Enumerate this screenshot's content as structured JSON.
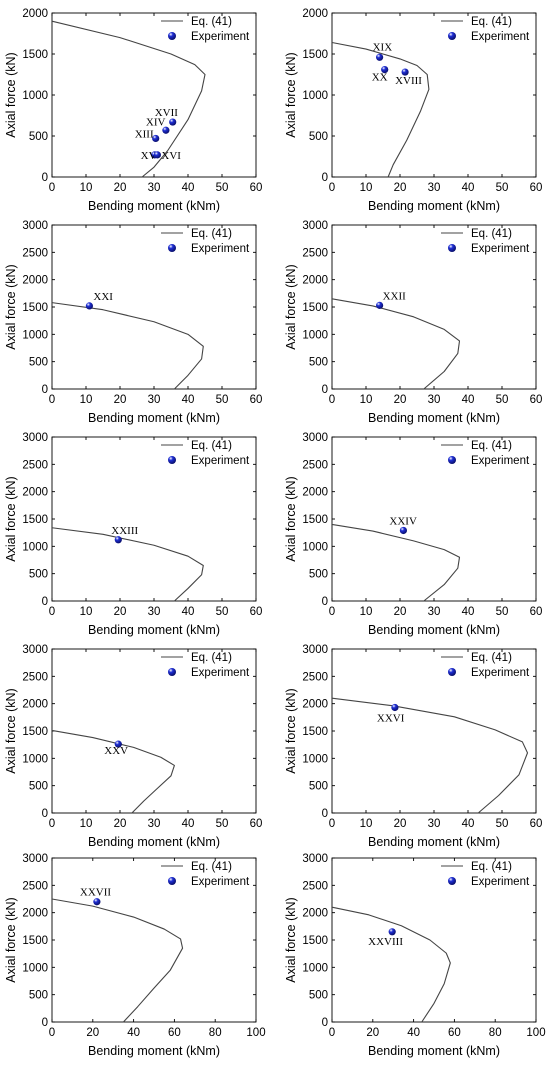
{
  "figure": {
    "curve_color": "#444444",
    "marker_color": "#1f2fd6"
  },
  "chart_data": [
    {
      "type": "line",
      "xlabel": "Bending moment (kNm)",
      "ylabel": "Axial force (kN)",
      "xlim": [
        0,
        60
      ],
      "ylim": [
        0,
        2000
      ],
      "xticks": [
        0,
        10,
        20,
        30,
        40,
        50,
        60
      ],
      "yticks": [
        0,
        500,
        1000,
        1500,
        2000
      ],
      "grid": false,
      "legend_position": "top-right",
      "series": [
        {
          "name": "Eq. (41)",
          "type": "line",
          "x": [
            0,
            20,
            35,
            42,
            45,
            44,
            40,
            34,
            30,
            26.5
          ],
          "y": [
            1900,
            1700,
            1500,
            1370,
            1250,
            1050,
            700,
            320,
            120,
            0
          ]
        },
        {
          "name": "Experiment",
          "type": "scatter",
          "x": [
            35.5,
            33.5,
            30.5,
            30.2,
            31
          ],
          "y": [
            670,
            570,
            470,
            270,
            270
          ],
          "labels": [
            "XVII",
            "XIV",
            "XIII",
            "XV",
            "XVI"
          ]
        }
      ]
    },
    {
      "type": "line",
      "xlabel": "Bending moment (kNm)",
      "ylabel": "Axial force (kN)",
      "xlim": [
        0,
        60
      ],
      "ylim": [
        0,
        2000
      ],
      "xticks": [
        0,
        10,
        20,
        30,
        40,
        50,
        60
      ],
      "yticks": [
        0,
        500,
        1000,
        1500,
        2000
      ],
      "grid": false,
      "legend_position": "top-right",
      "series": [
        {
          "name": "Eq. (41)",
          "type": "line",
          "x": [
            0,
            10,
            20,
            25,
            28,
            28.5,
            26,
            22,
            18,
            16.5
          ],
          "y": [
            1640,
            1560,
            1440,
            1360,
            1250,
            1070,
            800,
            450,
            150,
            0
          ]
        },
        {
          "name": "Experiment",
          "type": "scatter",
          "x": [
            14,
            15.5,
            21.5
          ],
          "y": [
            1460,
            1310,
            1280
          ],
          "labels": [
            "XIX",
            "XX",
            "XVIII"
          ]
        }
      ]
    },
    {
      "type": "line",
      "xlabel": "Bending moment (kNm)",
      "ylabel": "Axial force (kN)",
      "xlim": [
        0,
        60
      ],
      "ylim": [
        0,
        3000
      ],
      "xticks": [
        0,
        10,
        20,
        30,
        40,
        50,
        60
      ],
      "yticks": [
        0,
        500,
        1000,
        1500,
        2000,
        2500,
        3000
      ],
      "grid": false,
      "legend_position": "top-right",
      "series": [
        {
          "name": "Eq. (41)",
          "type": "line",
          "x": [
            0,
            15,
            30,
            40,
            44.5,
            44,
            40,
            36
          ],
          "y": [
            1580,
            1450,
            1230,
            1000,
            780,
            550,
            250,
            0
          ]
        },
        {
          "name": "Experiment",
          "type": "scatter",
          "x": [
            11
          ],
          "y": [
            1520
          ],
          "labels": [
            "XXI"
          ]
        }
      ]
    },
    {
      "type": "line",
      "xlabel": "Bending moment (kNm)",
      "ylabel": "Axial force (kN)",
      "xlim": [
        0,
        60
      ],
      "ylim": [
        0,
        3000
      ],
      "xticks": [
        0,
        10,
        20,
        30,
        40,
        50,
        60
      ],
      "yticks": [
        0,
        500,
        1000,
        1500,
        2000,
        2500,
        3000
      ],
      "grid": false,
      "legend_position": "top-right",
      "series": [
        {
          "name": "Eq. (41)",
          "type": "line",
          "x": [
            0,
            12,
            24,
            33,
            37.5,
            37,
            33,
            27
          ],
          "y": [
            1650,
            1520,
            1320,
            1090,
            880,
            650,
            320,
            0
          ]
        },
        {
          "name": "Experiment",
          "type": "scatter",
          "x": [
            14
          ],
          "y": [
            1530
          ],
          "labels": [
            "XXII"
          ]
        }
      ]
    },
    {
      "type": "line",
      "xlabel": "Bending moment (kNm)",
      "ylabel": "Axial force (kN)",
      "xlim": [
        0,
        60
      ],
      "ylim": [
        0,
        3000
      ],
      "xticks": [
        0,
        10,
        20,
        30,
        40,
        50,
        60
      ],
      "yticks": [
        0,
        500,
        1000,
        1500,
        2000,
        2500,
        3000
      ],
      "grid": false,
      "legend_position": "top-right",
      "series": [
        {
          "name": "Eq. (41)",
          "type": "line",
          "x": [
            0,
            15,
            30,
            40,
            44.5,
            44,
            40,
            36
          ],
          "y": [
            1340,
            1220,
            1020,
            820,
            650,
            480,
            230,
            0
          ]
        },
        {
          "name": "Experiment",
          "type": "scatter",
          "x": [
            19.5
          ],
          "y": [
            1120
          ],
          "labels": [
            "XXIII"
          ]
        }
      ]
    },
    {
      "type": "line",
      "xlabel": "Bending moment (kNm)",
      "ylabel": "Axial force (kN)",
      "xlim": [
        0,
        60
      ],
      "ylim": [
        0,
        3000
      ],
      "xticks": [
        0,
        10,
        20,
        30,
        40,
        50,
        60
      ],
      "yticks": [
        0,
        500,
        1000,
        1500,
        2000,
        2500,
        3000
      ],
      "grid": false,
      "legend_position": "top-right",
      "series": [
        {
          "name": "Eq. (41)",
          "type": "line",
          "x": [
            0,
            12,
            24,
            33,
            37.5,
            37,
            33,
            27
          ],
          "y": [
            1400,
            1280,
            1100,
            940,
            800,
            600,
            300,
            0
          ]
        },
        {
          "name": "Experiment",
          "type": "scatter",
          "x": [
            21
          ],
          "y": [
            1290
          ],
          "labels": [
            "XXIV"
          ]
        }
      ]
    },
    {
      "type": "line",
      "xlabel": "Bending moment (kNm)",
      "ylabel": "Axial force (kN)",
      "xlim": [
        0,
        60
      ],
      "ylim": [
        0,
        3000
      ],
      "xticks": [
        0,
        10,
        20,
        30,
        40,
        50,
        60
      ],
      "yticks": [
        0,
        500,
        1000,
        1500,
        2000,
        2500,
        3000
      ],
      "grid": false,
      "legend_position": "top-right",
      "series": [
        {
          "name": "Eq. (41)",
          "type": "line",
          "x": [
            0,
            12,
            24,
            32,
            36,
            35,
            31,
            27,
            23.5
          ],
          "y": [
            1510,
            1380,
            1200,
            1020,
            870,
            680,
            450,
            220,
            0
          ]
        },
        {
          "name": "Experiment",
          "type": "scatter",
          "x": [
            19.5
          ],
          "y": [
            1260
          ],
          "labels": [
            "XXV"
          ]
        }
      ]
    },
    {
      "type": "line",
      "xlabel": "Bending moment (kNm)",
      "ylabel": "Axial force (kN)",
      "xlim": [
        0,
        60
      ],
      "ylim": [
        0,
        3000
      ],
      "xticks": [
        0,
        10,
        20,
        30,
        40,
        50,
        60
      ],
      "yticks": [
        0,
        500,
        1000,
        1500,
        2000,
        2500,
        3000
      ],
      "grid": false,
      "legend_position": "top-right",
      "series": [
        {
          "name": "Eq. (41)",
          "type": "line",
          "x": [
            0,
            18,
            36,
            48,
            56,
            57.5,
            55,
            49,
            43
          ],
          "y": [
            2100,
            1960,
            1760,
            1520,
            1300,
            1100,
            700,
            320,
            0
          ]
        },
        {
          "name": "Experiment",
          "type": "scatter",
          "x": [
            18.5
          ],
          "y": [
            1930
          ],
          "labels": [
            "XXVI"
          ]
        }
      ]
    },
    {
      "type": "line",
      "xlabel": "Bending moment (kNm)",
      "ylabel": "Axial force (kN)",
      "xlim": [
        0,
        100
      ],
      "ylim": [
        0,
        3000
      ],
      "xticks": [
        0,
        20,
        40,
        60,
        80,
        100
      ],
      "yticks": [
        0,
        500,
        1000,
        1500,
        2000,
        2500,
        3000
      ],
      "grid": false,
      "legend_position": "top-right",
      "series": [
        {
          "name": "Eq. (41)",
          "type": "line",
          "x": [
            0,
            20,
            40,
            55,
            63,
            64,
            58,
            50,
            42,
            35
          ],
          "y": [
            2250,
            2120,
            1920,
            1700,
            1520,
            1350,
            950,
            620,
            280,
            0
          ]
        },
        {
          "name": "Experiment",
          "type": "scatter",
          "x": [
            22
          ],
          "y": [
            2200
          ],
          "labels": [
            "XXVII"
          ]
        }
      ]
    },
    {
      "type": "line",
      "xlabel": "Bending moment (kNm)",
      "ylabel": "Axial force (kN)",
      "xlim": [
        0,
        100
      ],
      "ylim": [
        0,
        3000
      ],
      "xticks": [
        0,
        20,
        40,
        60,
        80,
        100
      ],
      "yticks": [
        0,
        500,
        1000,
        1500,
        2000,
        2500,
        3000
      ],
      "grid": false,
      "legend_position": "top-right",
      "series": [
        {
          "name": "Eq. (41)",
          "type": "line",
          "x": [
            0,
            18,
            34,
            48,
            56,
            58,
            55,
            50,
            44
          ],
          "y": [
            2100,
            1960,
            1760,
            1500,
            1260,
            1080,
            700,
            340,
            0
          ]
        },
        {
          "name": "Experiment",
          "type": "scatter",
          "x": [
            29.5
          ],
          "y": [
            1650
          ],
          "labels": [
            "XXVIII"
          ]
        }
      ]
    }
  ]
}
